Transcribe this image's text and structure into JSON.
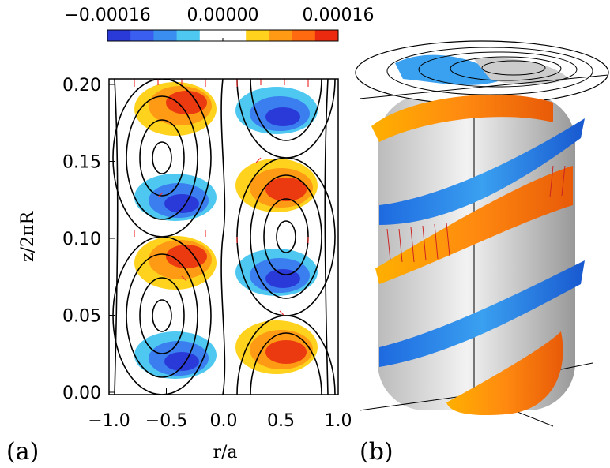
{
  "chart_data": [
    {
      "type": "colorbar",
      "colors": [
        "#2a3ad8",
        "#3a5ef0",
        "#3a8ef0",
        "#4ec8f0",
        "#ffffff",
        "#ffffff",
        "#ffd21e",
        "#ff9a14",
        "#ff6a10",
        "#ec2a10"
      ],
      "xlim": [
        -0.00016,
        0.00016
      ],
      "xticks": [
        {
          "value": -0.00016,
          "label": "−0.00016"
        },
        {
          "value": 0,
          "label": "0.00000"
        },
        {
          "value": 0.00016,
          "label": "0.00016"
        }
      ]
    },
    {
      "type": "contour",
      "xlabel": "r/a",
      "ylabel": "z/2πR",
      "panel_label": "(a)",
      "xlim": [
        -1,
        1
      ],
      "ylim": [
        0,
        0.2
      ],
      "xticks": [
        {
          "value": -1,
          "label": "−1.0"
        },
        {
          "value": -0.5,
          "label": "−0.5"
        },
        {
          "value": 0,
          "label": "0.0"
        },
        {
          "value": 0.5,
          "label": "0.5"
        },
        {
          "value": 1,
          "label": "1.0"
        }
      ],
      "yticks": [
        {
          "value": 0,
          "label": "0.00"
        },
        {
          "value": 0.05,
          "label": "0.05"
        },
        {
          "value": 0.1,
          "label": "0.10"
        },
        {
          "value": 0.15,
          "label": "0.15"
        },
        {
          "value": 0.2,
          "label": "0.20"
        }
      ]
    },
    {
      "type": "render3d",
      "panel_label": "(b)"
    }
  ]
}
